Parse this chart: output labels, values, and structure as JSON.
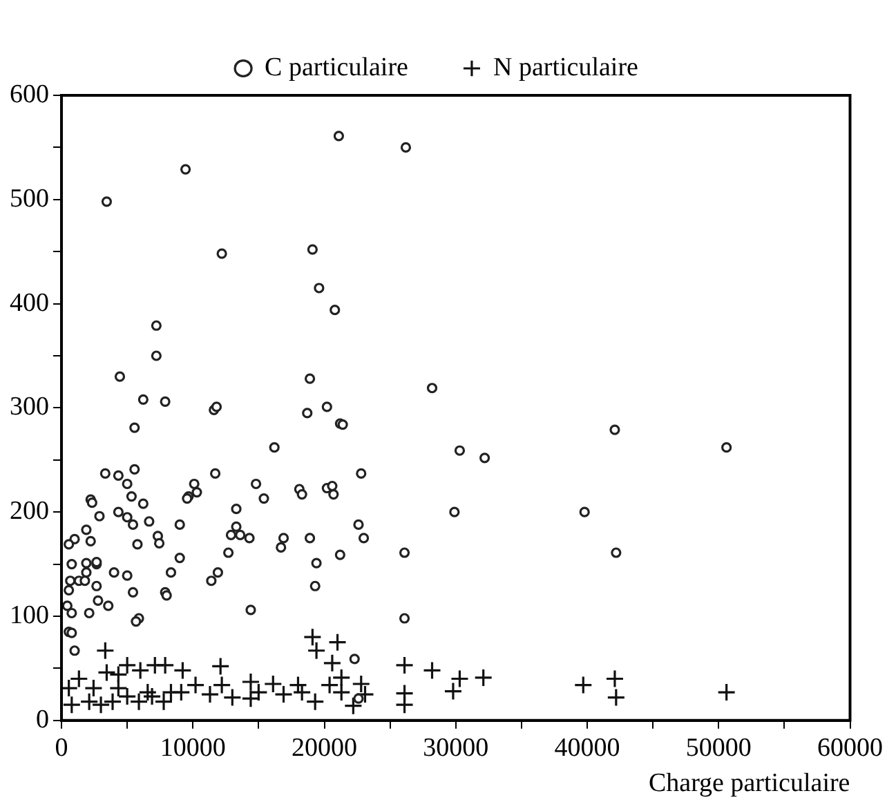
{
  "chart_data": {
    "type": "scatter",
    "xlabel": "Charge particulaire",
    "legend": "top",
    "grid": false,
    "xlim": [
      0,
      60000
    ],
    "ylim": [
      0,
      600
    ],
    "xticks": [
      0,
      {
        "value": 5000,
        "label": null
      },
      10000,
      {
        "value": 15000,
        "label": null
      },
      20000,
      {
        "value": 25000,
        "label": null
      },
      30000,
      {
        "value": 35000,
        "label": null
      },
      40000,
      {
        "value": 45000,
        "label": null
      },
      50000,
      {
        "value": 55000,
        "label": null
      },
      60000
    ],
    "yticks": [
      0,
      {
        "value": 50,
        "label": null
      },
      100,
      {
        "value": 150,
        "label": null
      },
      200,
      {
        "value": 250,
        "label": null
      },
      300,
      {
        "value": 350,
        "label": null
      },
      400,
      {
        "value": 450,
        "label": null
      },
      500,
      {
        "value": 550,
        "label": null
      },
      600
    ],
    "series": [
      {
        "name": "C particulaire",
        "color": "#222222",
        "marker": "circle",
        "x": [
          21100,
          9440,
          3440,
          12200,
          19100,
          19600,
          20800,
          7220,
          7220,
          4440,
          18900,
          6220,
          7890,
          11600,
          11800,
          18700,
          20200,
          5560,
          16200,
          3330,
          4330,
          5560,
          5000,
          5330,
          2220,
          2330,
          6220,
          2890,
          4330,
          5000,
          5440,
          6670,
          9000,
          9670,
          9560,
          10100,
          10300,
          11700,
          14800,
          15400,
          18100,
          18300,
          20200,
          20700,
          1890,
          2220,
          1000,
          560,
          5780,
          7330,
          7440,
          13300,
          13300,
          12900,
          13600,
          14300,
          16700,
          16900,
          18900,
          19400,
          19300,
          21200,
          12700,
          11900,
          11400,
          9000,
          8330,
          7890,
          8000,
          4000,
          5000,
          5440,
          5890,
          5670,
          14400,
          2670,
          2670,
          2780,
          3560,
          2110,
          780,
          1890,
          1890,
          2670,
          670,
          1330,
          1780,
          560,
          440,
          780,
          560,
          780,
          1000,
          21200,
          26200,
          28200,
          21400,
          30300,
          32200,
          42100,
          22800,
          20600,
          29900,
          39800,
          22600,
          23000,
          26100,
          42200,
          26100,
          22300,
          22600,
          50600
        ],
        "values": [
          561,
          529,
          498,
          448,
          452,
          415,
          394,
          379,
          350,
          330,
          328,
          308,
          306,
          298,
          301,
          295,
          301,
          281,
          262,
          237,
          235,
          241,
          227,
          215,
          212,
          209,
          208,
          196,
          200,
          195,
          188,
          191,
          188,
          215,
          213,
          227,
          219,
          237,
          227,
          213,
          222,
          217,
          223,
          217,
          183,
          172,
          174,
          169,
          169,
          177,
          170,
          203,
          186,
          178,
          178,
          175,
          166,
          175,
          175,
          151,
          129,
          159,
          161,
          142,
          134,
          156,
          142,
          123,
          120,
          142,
          139,
          123,
          98,
          95,
          106,
          150,
          129,
          115,
          110,
          103,
          150,
          151,
          142,
          152,
          134,
          134,
          134,
          125,
          110,
          103,
          85,
          84,
          67,
          285,
          550,
          319,
          284,
          259,
          252,
          279,
          237,
          225,
          200,
          200,
          188,
          175,
          161,
          161,
          98,
          59,
          21,
          262
        ]
      },
      {
        "name": "N particulaire",
        "color": "#111111",
        "marker": "cross",
        "x": [
          26100,
          28200,
          30300,
          29800,
          32100,
          26100,
          26100,
          39700,
          42100,
          42200,
          22800,
          21300,
          21300,
          22200,
          23100,
          50600,
          19100,
          19400,
          21000,
          20600,
          3330,
          12100,
          9220,
          7110,
          7890,
          5000,
          6000,
          3440,
          4330,
          1330,
          11300,
          14400,
          16100,
          16900,
          14400,
          13000,
          19300,
          12200,
          10200,
          9110,
          7780,
          6890,
          5890,
          5000,
          3890,
          3000,
          2110,
          780,
          560,
          2440,
          4330,
          6560,
          8330,
          15000,
          18000,
          20400,
          18300
        ],
        "values": [
          53,
          48,
          40,
          28,
          41,
          26,
          15,
          34,
          40,
          22,
          35,
          41,
          27,
          14,
          25,
          27,
          80,
          67,
          75,
          55,
          67,
          52,
          48,
          53,
          53,
          53,
          48,
          46,
          44,
          40,
          25,
          37,
          35,
          25,
          21,
          22,
          18,
          34,
          34,
          27,
          18,
          23,
          18,
          23,
          18,
          15,
          18,
          15,
          31,
          31,
          31,
          27,
          27,
          27,
          34,
          34,
          27
        ]
      }
    ]
  }
}
